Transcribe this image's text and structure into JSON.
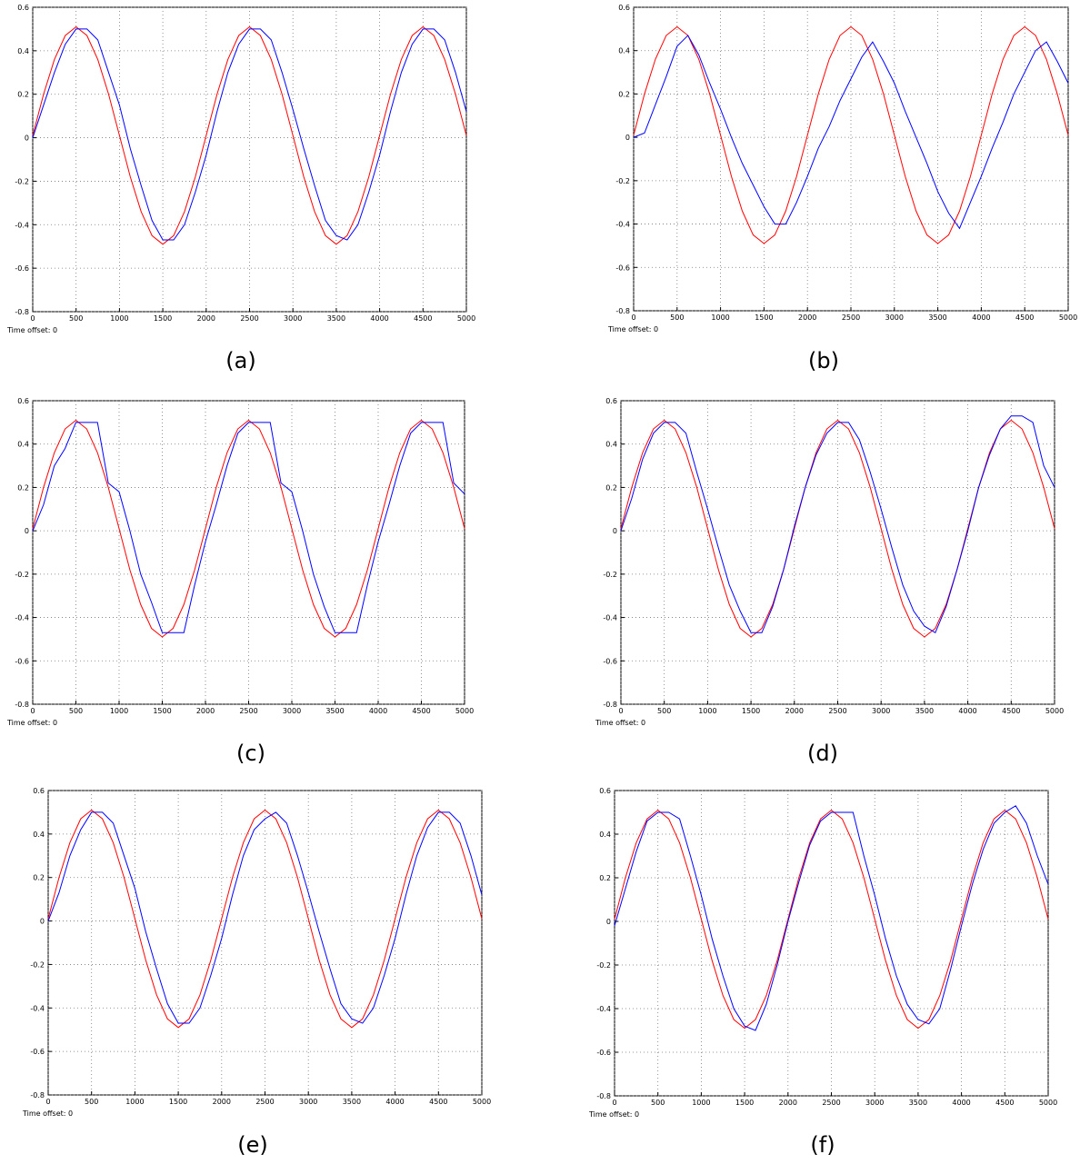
{
  "chart_data": [
    {
      "type": "line",
      "caption": "(a)",
      "footer": "Time offset:  0",
      "grid": true,
      "x": [
        0,
        125,
        250,
        375,
        500,
        625,
        750,
        875,
        1000,
        1125,
        1250,
        1375,
        1500,
        1625,
        1750,
        1875,
        2000,
        2125,
        2250,
        2375,
        2500,
        2625,
        2750,
        2875,
        3000,
        3125,
        3250,
        3375,
        3500,
        3625,
        3750,
        3875,
        4000,
        4125,
        4250,
        4375,
        4500,
        4625,
        4750,
        4875,
        5000
      ],
      "xlim": [
        0,
        5000
      ],
      "xticks": [
        0,
        500,
        1000,
        1500,
        2000,
        2500,
        3000,
        3500,
        4000,
        4500,
        5000
      ],
      "ylim": [
        -0.8,
        0.6
      ],
      "yticks": [
        0.6,
        0.4,
        0.2,
        0,
        -0.2,
        -0.4,
        -0.6,
        -0.8
      ],
      "series": [
        {
          "color": "#ff0000",
          "values": [
            0.01,
            0.2,
            0.36,
            0.47,
            0.51,
            0.47,
            0.36,
            0.2,
            0.01,
            -0.18,
            -0.34,
            -0.45,
            -0.49,
            -0.45,
            -0.34,
            -0.18,
            0.01,
            0.2,
            0.36,
            0.47,
            0.51,
            0.47,
            0.36,
            0.2,
            0.01,
            -0.18,
            -0.34,
            -0.45,
            -0.49,
            -0.45,
            -0.34,
            -0.18,
            0.01,
            0.2,
            0.36,
            0.47,
            0.51,
            0.47,
            0.36,
            0.2,
            0.01
          ]
        },
        {
          "color": "#0000ff",
          "values": [
            0,
            0.15,
            0.3,
            0.43,
            0.5,
            0.5,
            0.45,
            0.3,
            0.15,
            -0.05,
            -0.22,
            -0.38,
            -0.47,
            -0.47,
            -0.4,
            -0.25,
            -0.08,
            0.12,
            0.3,
            0.43,
            0.5,
            0.5,
            0.45,
            0.3,
            0.13,
            -0.05,
            -0.22,
            -0.38,
            -0.45,
            -0.47,
            -0.4,
            -0.25,
            -0.08,
            0.12,
            0.3,
            0.43,
            0.5,
            0.5,
            0.45,
            0.3,
            0.12
          ]
        }
      ]
    },
    {
      "type": "line",
      "caption": "(b)",
      "footer": "Time offset:  0",
      "grid": true,
      "x": [
        0,
        125,
        250,
        375,
        500,
        625,
        750,
        875,
        1000,
        1125,
        1250,
        1375,
        1500,
        1625,
        1750,
        1875,
        2000,
        2125,
        2250,
        2375,
        2500,
        2625,
        2750,
        2875,
        3000,
        3125,
        3250,
        3375,
        3500,
        3625,
        3750,
        3875,
        4000,
        4125,
        4250,
        4375,
        4500,
        4625,
        4750,
        4875,
        5000
      ],
      "xlim": [
        0,
        5000
      ],
      "xticks": [
        0,
        500,
        1000,
        1500,
        2000,
        2500,
        3000,
        3500,
        4000,
        4500,
        5000
      ],
      "ylim": [
        -0.8,
        0.6
      ],
      "yticks": [
        0.6,
        0.4,
        0.2,
        0,
        -0.2,
        -0.4,
        -0.6,
        -0.8
      ],
      "series": [
        {
          "color": "#ff0000",
          "values": [
            0.01,
            0.2,
            0.36,
            0.47,
            0.51,
            0.47,
            0.36,
            0.2,
            0.01,
            -0.18,
            -0.34,
            -0.45,
            -0.49,
            -0.45,
            -0.34,
            -0.18,
            0.01,
            0.2,
            0.36,
            0.47,
            0.51,
            0.47,
            0.36,
            0.2,
            0.01,
            -0.18,
            -0.34,
            -0.45,
            -0.49,
            -0.45,
            -0.34,
            -0.18,
            0.01,
            0.2,
            0.36,
            0.47,
            0.51,
            0.47,
            0.36,
            0.2,
            0.01
          ]
        },
        {
          "color": "#0000ff",
          "values": [
            0,
            0.02,
            0.15,
            0.28,
            0.42,
            0.47,
            0.38,
            0.25,
            0.13,
            0,
            -0.12,
            -0.22,
            -0.32,
            -0.4,
            -0.4,
            -0.3,
            -0.18,
            -0.05,
            0.05,
            0.17,
            0.27,
            0.37,
            0.44,
            0.35,
            0.25,
            0.12,
            0,
            -0.12,
            -0.25,
            -0.35,
            -0.42,
            -0.3,
            -0.18,
            -0.05,
            0.07,
            0.2,
            0.3,
            0.4,
            0.44,
            0.35,
            0.25
          ]
        }
      ]
    },
    {
      "type": "line",
      "caption": "(c)",
      "footer": "Time offset:  0",
      "grid": true,
      "x": [
        0,
        125,
        250,
        375,
        500,
        625,
        750,
        875,
        1000,
        1125,
        1250,
        1375,
        1500,
        1625,
        1750,
        1875,
        2000,
        2125,
        2250,
        2375,
        2500,
        2625,
        2750,
        2875,
        3000,
        3125,
        3250,
        3375,
        3500,
        3625,
        3750,
        3875,
        4000,
        4125,
        4250,
        4375,
        4500,
        4625,
        4750,
        4875,
        5000
      ],
      "xlim": [
        0,
        5000
      ],
      "xticks": [
        0,
        500,
        1000,
        1500,
        2000,
        2500,
        3000,
        3500,
        4000,
        4500,
        5000
      ],
      "ylim": [
        -0.8,
        0.6
      ],
      "yticks": [
        0.6,
        0.4,
        0.2,
        0,
        -0.2,
        -0.4,
        -0.6,
        -0.8
      ],
      "series": [
        {
          "color": "#ff0000",
          "values": [
            0.01,
            0.2,
            0.36,
            0.47,
            0.51,
            0.47,
            0.36,
            0.2,
            0.01,
            -0.18,
            -0.34,
            -0.45,
            -0.49,
            -0.45,
            -0.34,
            -0.18,
            0.01,
            0.2,
            0.36,
            0.47,
            0.51,
            0.47,
            0.36,
            0.2,
            0.01,
            -0.18,
            -0.34,
            -0.45,
            -0.49,
            -0.45,
            -0.34,
            -0.18,
            0.01,
            0.2,
            0.36,
            0.47,
            0.51,
            0.47,
            0.36,
            0.2,
            0.01
          ]
        },
        {
          "color": "#0000ff",
          "values": [
            0,
            0.12,
            0.3,
            0.38,
            0.5,
            0.5,
            0.5,
            0.22,
            0.18,
            0,
            -0.2,
            -0.33,
            -0.47,
            -0.47,
            -0.47,
            -0.25,
            -0.05,
            0.12,
            0.3,
            0.45,
            0.5,
            0.5,
            0.5,
            0.22,
            0.18,
            0,
            -0.2,
            -0.35,
            -0.47,
            -0.47,
            -0.47,
            -0.25,
            -0.05,
            0.12,
            0.3,
            0.45,
            0.5,
            0.5,
            0.5,
            0.22,
            0.17
          ]
        }
      ]
    },
    {
      "type": "line",
      "caption": "(d)",
      "footer": "Time offset:  0",
      "grid": true,
      "x": [
        0,
        125,
        250,
        375,
        500,
        625,
        750,
        875,
        1000,
        1125,
        1250,
        1375,
        1500,
        1625,
        1750,
        1875,
        2000,
        2125,
        2250,
        2375,
        2500,
        2625,
        2750,
        2875,
        3000,
        3125,
        3250,
        3375,
        3500,
        3625,
        3750,
        3875,
        4000,
        4125,
        4250,
        4375,
        4500,
        4625,
        4750,
        4875,
        5000
      ],
      "xlim": [
        0,
        5000
      ],
      "xticks": [
        0,
        500,
        1000,
        1500,
        2000,
        2500,
        3000,
        3500,
        4000,
        4500,
        5000
      ],
      "ylim": [
        -0.8,
        0.6
      ],
      "yticks": [
        0.6,
        0.4,
        0.2,
        0,
        -0.2,
        -0.4,
        -0.6,
        -0.8
      ],
      "series": [
        {
          "color": "#ff0000",
          "values": [
            0.01,
            0.2,
            0.36,
            0.47,
            0.51,
            0.47,
            0.36,
            0.2,
            0.01,
            -0.18,
            -0.34,
            -0.45,
            -0.49,
            -0.45,
            -0.34,
            -0.18,
            0.01,
            0.2,
            0.36,
            0.47,
            0.51,
            0.47,
            0.36,
            0.2,
            0.01,
            -0.18,
            -0.34,
            -0.45,
            -0.49,
            -0.45,
            -0.34,
            -0.18,
            0.01,
            0.2,
            0.36,
            0.47,
            0.51,
            0.47,
            0.36,
            0.2,
            0.01
          ]
        },
        {
          "color": "#0000ff",
          "values": [
            0,
            0.15,
            0.33,
            0.45,
            0.5,
            0.5,
            0.45,
            0.27,
            0.1,
            -0.08,
            -0.25,
            -0.37,
            -0.47,
            -0.47,
            -0.35,
            -0.18,
            0.02,
            0.2,
            0.35,
            0.45,
            0.5,
            0.5,
            0.42,
            0.27,
            0.1,
            -0.08,
            -0.25,
            -0.37,
            -0.44,
            -0.47,
            -0.35,
            -0.18,
            0,
            0.2,
            0.35,
            0.47,
            0.53,
            0.53,
            0.5,
            0.3,
            0.2
          ]
        }
      ]
    },
    {
      "type": "line",
      "caption": "(e)",
      "footer": "Time offset:  0",
      "grid": true,
      "x": [
        0,
        125,
        250,
        375,
        500,
        625,
        750,
        875,
        1000,
        1125,
        1250,
        1375,
        1500,
        1625,
        1750,
        1875,
        2000,
        2125,
        2250,
        2375,
        2500,
        2625,
        2750,
        2875,
        3000,
        3125,
        3250,
        3375,
        3500,
        3625,
        3750,
        3875,
        4000,
        4125,
        4250,
        4375,
        4500,
        4625,
        4750,
        4875,
        5000
      ],
      "xlim": [
        0,
        5000
      ],
      "xticks": [
        0,
        500,
        1000,
        1500,
        2000,
        2500,
        3000,
        3500,
        4000,
        4500,
        5000
      ],
      "ylim": [
        -0.8,
        0.6
      ],
      "yticks": [
        0.6,
        0.4,
        0.2,
        0,
        -0.2,
        -0.4,
        -0.6,
        -0.8
      ],
      "series": [
        {
          "color": "#ff0000",
          "values": [
            0.01,
            0.2,
            0.36,
            0.47,
            0.51,
            0.47,
            0.36,
            0.2,
            0.01,
            -0.18,
            -0.34,
            -0.45,
            -0.49,
            -0.45,
            -0.34,
            -0.18,
            0.01,
            0.2,
            0.36,
            0.47,
            0.51,
            0.47,
            0.36,
            0.2,
            0.01,
            -0.18,
            -0.34,
            -0.45,
            -0.49,
            -0.45,
            -0.34,
            -0.18,
            0.01,
            0.2,
            0.36,
            0.47,
            0.51,
            0.47,
            0.36,
            0.2,
            0.01
          ]
        },
        {
          "color": "#0000ff",
          "values": [
            0,
            0.13,
            0.3,
            0.42,
            0.5,
            0.5,
            0.45,
            0.3,
            0.15,
            -0.05,
            -0.22,
            -0.38,
            -0.47,
            -0.47,
            -0.4,
            -0.25,
            -0.08,
            0.12,
            0.3,
            0.42,
            0.47,
            0.5,
            0.45,
            0.3,
            0.13,
            -0.05,
            -0.22,
            -0.38,
            -0.45,
            -0.47,
            -0.4,
            -0.25,
            -0.08,
            0.12,
            0.3,
            0.43,
            0.5,
            0.5,
            0.45,
            0.3,
            0.12
          ]
        }
      ]
    },
    {
      "type": "line",
      "caption": "(f)",
      "footer": "Time offset:  0",
      "grid": true,
      "x": [
        0,
        125,
        250,
        375,
        500,
        625,
        750,
        875,
        1000,
        1125,
        1250,
        1375,
        1500,
        1625,
        1750,
        1875,
        2000,
        2125,
        2250,
        2375,
        2500,
        2625,
        2750,
        2875,
        3000,
        3125,
        3250,
        3375,
        3500,
        3625,
        3750,
        3875,
        4000,
        4125,
        4250,
        4375,
        4500,
        4625,
        4750,
        4875,
        5000
      ],
      "xlim": [
        0,
        5000
      ],
      "xticks": [
        0,
        500,
        1000,
        1500,
        2000,
        2500,
        3000,
        3500,
        4000,
        4500,
        5000
      ],
      "ylim": [
        -0.8,
        0.6
      ],
      "yticks": [
        0.6,
        0.4,
        0.2,
        0,
        -0.2,
        -0.4,
        -0.6,
        -0.8
      ],
      "series": [
        {
          "color": "#ff0000",
          "values": [
            0.01,
            0.2,
            0.36,
            0.47,
            0.51,
            0.47,
            0.36,
            0.2,
            0.01,
            -0.18,
            -0.34,
            -0.45,
            -0.49,
            -0.45,
            -0.34,
            -0.18,
            0.01,
            0.2,
            0.36,
            0.47,
            0.51,
            0.47,
            0.36,
            0.2,
            0.01,
            -0.18,
            -0.34,
            -0.45,
            -0.49,
            -0.45,
            -0.34,
            -0.18,
            0.01,
            0.2,
            0.36,
            0.47,
            0.51,
            0.47,
            0.36,
            0.2,
            0.01
          ]
        },
        {
          "color": "#0000ff",
          "values": [
            -0.02,
            0.15,
            0.32,
            0.46,
            0.5,
            0.5,
            0.47,
            0.3,
            0.12,
            -0.08,
            -0.25,
            -0.4,
            -0.48,
            -0.5,
            -0.38,
            -0.2,
            0,
            0.18,
            0.35,
            0.46,
            0.5,
            0.5,
            0.5,
            0.3,
            0.12,
            -0.08,
            -0.25,
            -0.38,
            -0.45,
            -0.47,
            -0.4,
            -0.22,
            -0.02,
            0.17,
            0.33,
            0.45,
            0.5,
            0.53,
            0.45,
            0.3,
            0.17
          ]
        }
      ]
    }
  ]
}
